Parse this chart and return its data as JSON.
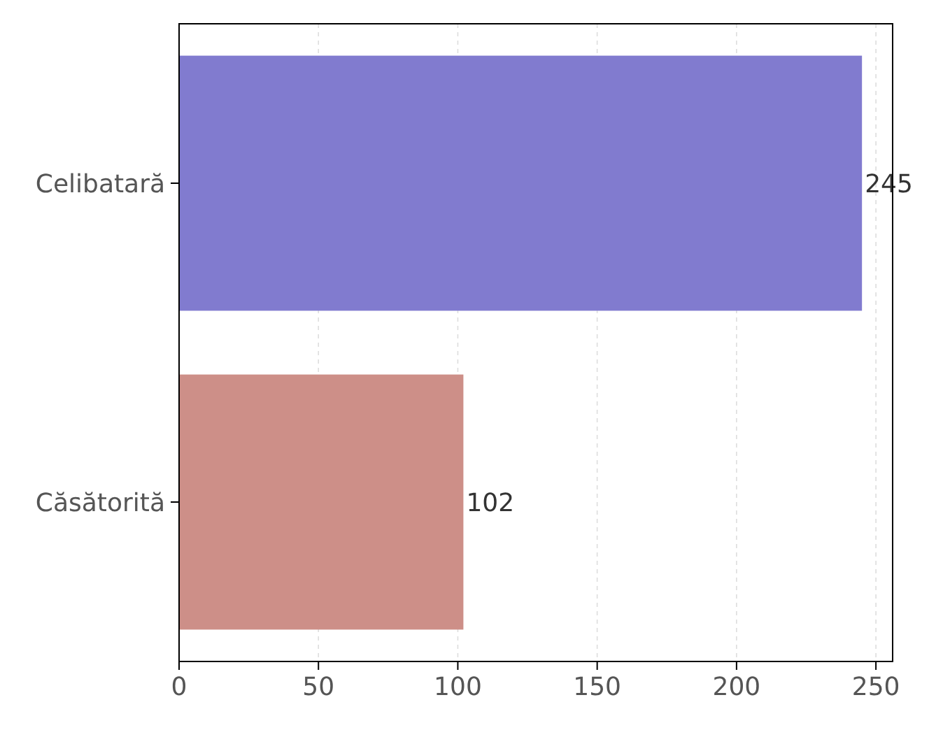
{
  "chart_data": {
    "type": "bar",
    "orientation": "horizontal",
    "categories": [
      "Celibatară",
      "Căsătorită"
    ],
    "values": [
      245,
      102
    ],
    "colors": [
      "#817bcf",
      "#cd8f88"
    ],
    "xlim": [
      0,
      256
    ],
    "xticks": [
      0,
      50,
      100,
      150,
      200,
      250
    ],
    "grid": "x",
    "data_labels": true
  }
}
